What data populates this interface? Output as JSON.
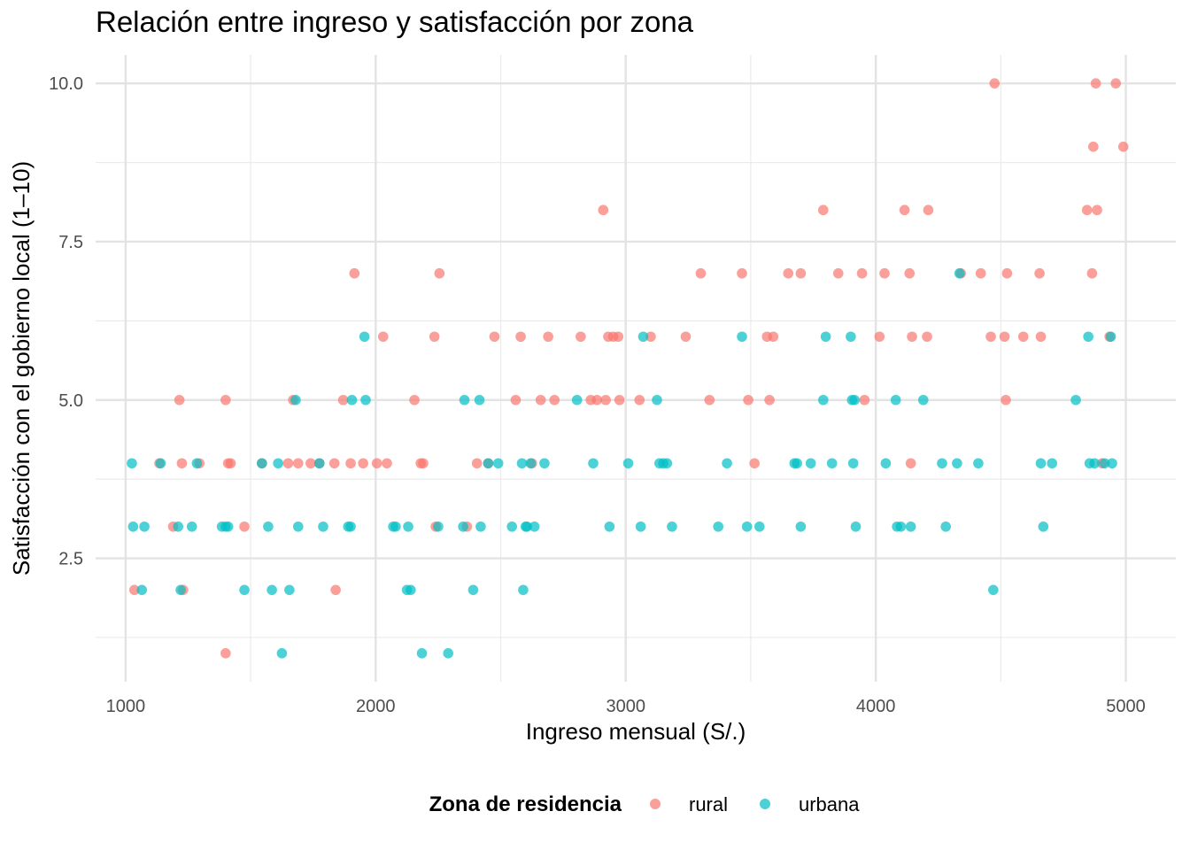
{
  "chart_data": {
    "type": "scatter",
    "title": "Relación entre ingreso y satisfacción por zona",
    "xlabel": "Ingreso mensual (S/.)",
    "ylabel": "Satisfacción con el gobierno local (1–10)",
    "xlim": [
      880,
      5200
    ],
    "ylim": [
      0.55,
      10.45
    ],
    "x_ticks": [
      1000,
      2000,
      3000,
      4000,
      5000
    ],
    "x_tick_labels": [
      "1000",
      "2000",
      "3000",
      "4000",
      "5000"
    ],
    "y_ticks": [
      2.5,
      5.0,
      7.5,
      10.0
    ],
    "y_tick_labels": [
      "2.5",
      "5.0",
      "7.5",
      "10.0"
    ],
    "grid": true,
    "legend": {
      "title": "Zona de residencia",
      "position": "bottom"
    },
    "series": [
      {
        "name": "rural",
        "color": "#F8766D",
        "points": [
          [
            1035,
            2
          ],
          [
            1135,
            4
          ],
          [
            1190,
            3
          ],
          [
            1215,
            5
          ],
          [
            1225,
            4
          ],
          [
            1230,
            2
          ],
          [
            1295,
            4
          ],
          [
            1400,
            5
          ],
          [
            1400,
            1
          ],
          [
            1410,
            4
          ],
          [
            1420,
            4
          ],
          [
            1475,
            3
          ],
          [
            1545,
            4
          ],
          [
            1650,
            4
          ],
          [
            1670,
            5
          ],
          [
            1690,
            4
          ],
          [
            1740,
            4
          ],
          [
            1775,
            4
          ],
          [
            1835,
            4
          ],
          [
            1840,
            2
          ],
          [
            1870,
            5
          ],
          [
            1900,
            4
          ],
          [
            1915,
            7
          ],
          [
            1950,
            4
          ],
          [
            2005,
            4
          ],
          [
            2030,
            6
          ],
          [
            2045,
            4
          ],
          [
            2155,
            5
          ],
          [
            2180,
            4
          ],
          [
            2190,
            4
          ],
          [
            2235,
            6
          ],
          [
            2240,
            3
          ],
          [
            2255,
            7
          ],
          [
            2365,
            3
          ],
          [
            2405,
            4
          ],
          [
            2450,
            4
          ],
          [
            2475,
            6
          ],
          [
            2560,
            5
          ],
          [
            2580,
            6
          ],
          [
            2625,
            4
          ],
          [
            2660,
            5
          ],
          [
            2690,
            6
          ],
          [
            2715,
            5
          ],
          [
            2820,
            6
          ],
          [
            2860,
            5
          ],
          [
            2885,
            5
          ],
          [
            2910,
            8
          ],
          [
            2920,
            5
          ],
          [
            2930,
            6
          ],
          [
            2950,
            6
          ],
          [
            2970,
            6
          ],
          [
            2975,
            5
          ],
          [
            3055,
            5
          ],
          [
            3100,
            6
          ],
          [
            3240,
            6
          ],
          [
            3300,
            7
          ],
          [
            3335,
            5
          ],
          [
            3465,
            7
          ],
          [
            3490,
            5
          ],
          [
            3515,
            4
          ],
          [
            3565,
            6
          ],
          [
            3575,
            5
          ],
          [
            3590,
            6
          ],
          [
            3650,
            7
          ],
          [
            3700,
            7
          ],
          [
            3790,
            8
          ],
          [
            3850,
            7
          ],
          [
            3945,
            7
          ],
          [
            3955,
            5
          ],
          [
            4015,
            6
          ],
          [
            4035,
            7
          ],
          [
            4115,
            8
          ],
          [
            4135,
            7
          ],
          [
            4140,
            4
          ],
          [
            4145,
            6
          ],
          [
            4205,
            6
          ],
          [
            4210,
            8
          ],
          [
            4340,
            7
          ],
          [
            4420,
            7
          ],
          [
            4460,
            6
          ],
          [
            4475,
            10
          ],
          [
            4515,
            6
          ],
          [
            4520,
            5
          ],
          [
            4525,
            7
          ],
          [
            4590,
            6
          ],
          [
            4655,
            7
          ],
          [
            4660,
            6
          ],
          [
            4845,
            8
          ],
          [
            4865,
            7
          ],
          [
            4870,
            9
          ],
          [
            4880,
            10
          ],
          [
            4885,
            8
          ],
          [
            4905,
            4
          ],
          [
            4935,
            6
          ],
          [
            4960,
            10
          ],
          [
            4990,
            9
          ]
        ]
      },
      {
        "name": "urbana",
        "color": "#00BFC4",
        "points": [
          [
            1025,
            4
          ],
          [
            1030,
            3
          ],
          [
            1065,
            2
          ],
          [
            1075,
            3
          ],
          [
            1140,
            4
          ],
          [
            1210,
            3
          ],
          [
            1220,
            2
          ],
          [
            1265,
            3
          ],
          [
            1285,
            4
          ],
          [
            1385,
            3
          ],
          [
            1400,
            3
          ],
          [
            1410,
            3
          ],
          [
            1475,
            2
          ],
          [
            1545,
            4
          ],
          [
            1570,
            3
          ],
          [
            1585,
            2
          ],
          [
            1610,
            4
          ],
          [
            1625,
            1
          ],
          [
            1655,
            2
          ],
          [
            1680,
            5
          ],
          [
            1690,
            3
          ],
          [
            1775,
            4
          ],
          [
            1790,
            3
          ],
          [
            1890,
            3
          ],
          [
            1900,
            3
          ],
          [
            1905,
            5
          ],
          [
            1955,
            6
          ],
          [
            1960,
            5
          ],
          [
            2070,
            3
          ],
          [
            2080,
            3
          ],
          [
            2125,
            2
          ],
          [
            2130,
            3
          ],
          [
            2140,
            2
          ],
          [
            2185,
            1
          ],
          [
            2250,
            3
          ],
          [
            2290,
            1
          ],
          [
            2350,
            3
          ],
          [
            2355,
            5
          ],
          [
            2390,
            2
          ],
          [
            2415,
            5
          ],
          [
            2420,
            3
          ],
          [
            2450,
            4
          ],
          [
            2490,
            4
          ],
          [
            2545,
            3
          ],
          [
            2585,
            4
          ],
          [
            2590,
            2
          ],
          [
            2600,
            3
          ],
          [
            2605,
            3
          ],
          [
            2620,
            4
          ],
          [
            2635,
            3
          ],
          [
            2675,
            4
          ],
          [
            2805,
            5
          ],
          [
            2870,
            4
          ],
          [
            2935,
            3
          ],
          [
            3010,
            4
          ],
          [
            3060,
            3
          ],
          [
            3070,
            6
          ],
          [
            3125,
            5
          ],
          [
            3135,
            4
          ],
          [
            3150,
            4
          ],
          [
            3165,
            4
          ],
          [
            3185,
            3
          ],
          [
            3370,
            3
          ],
          [
            3405,
            4
          ],
          [
            3465,
            6
          ],
          [
            3485,
            3
          ],
          [
            3535,
            3
          ],
          [
            3675,
            4
          ],
          [
            3685,
            4
          ],
          [
            3700,
            3
          ],
          [
            3740,
            4
          ],
          [
            3790,
            5
          ],
          [
            3800,
            6
          ],
          [
            3825,
            4
          ],
          [
            3900,
            6
          ],
          [
            3905,
            5
          ],
          [
            3910,
            4
          ],
          [
            3915,
            5
          ],
          [
            3920,
            3
          ],
          [
            4040,
            4
          ],
          [
            4080,
            5
          ],
          [
            4085,
            3
          ],
          [
            4100,
            3
          ],
          [
            4140,
            3
          ],
          [
            4190,
            5
          ],
          [
            4265,
            4
          ],
          [
            4280,
            3
          ],
          [
            4325,
            4
          ],
          [
            4335,
            7
          ],
          [
            4410,
            4
          ],
          [
            4470,
            2
          ],
          [
            4660,
            4
          ],
          [
            4670,
            3
          ],
          [
            4705,
            4
          ],
          [
            4800,
            5
          ],
          [
            4850,
            6
          ],
          [
            4855,
            4
          ],
          [
            4875,
            4
          ],
          [
            4915,
            4
          ],
          [
            4940,
            6
          ],
          [
            4945,
            4
          ]
        ]
      }
    ]
  }
}
